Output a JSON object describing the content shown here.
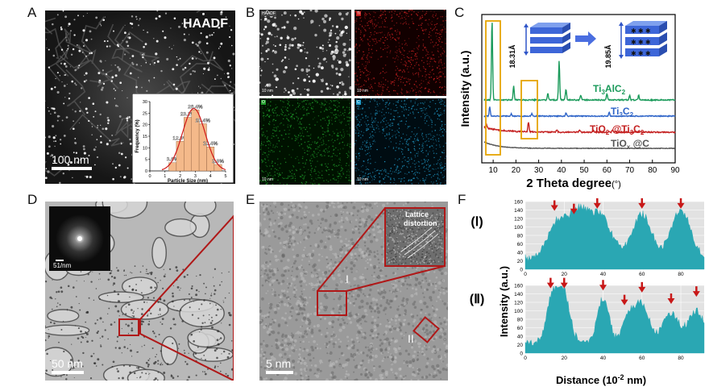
{
  "panels": {
    "A": {
      "letter": "A",
      "label": "HAADF",
      "scale": "100 nm",
      "inset": {
        "xlabel": "Particle Size (nm)",
        "ylabel": "Frequency (%)",
        "yticks": [
          "0",
          "5",
          "10",
          "15",
          "20",
          "25",
          "30"
        ],
        "xticks": [
          "0",
          "1",
          "2",
          "3",
          "4",
          "5"
        ],
        "bins": [
          {
            "center": 1.5,
            "value": 3.6,
            "label": "3.6%"
          },
          {
            "center": 2.0,
            "value": 12.8,
            "label": "12.8%"
          },
          {
            "center": 2.5,
            "value": 23.2,
            "label": "23.2%"
          },
          {
            "center": 3.0,
            "value": 26.4,
            "label": "26.4%"
          },
          {
            "center": 3.5,
            "value": 20.4,
            "label": "20.4%"
          },
          {
            "center": 4.0,
            "value": 10.4,
            "label": "10.4%"
          },
          {
            "center": 4.5,
            "value": 2.8,
            "label": "2.8%"
          }
        ]
      }
    },
    "B": {
      "letter": "B",
      "tiles": [
        {
          "label": "HAADF",
          "scale": "10 nm",
          "color": "#9a9a9a"
        },
        {
          "label": "Ti",
          "scale": "10 nm",
          "color": "#c62020"
        },
        {
          "label": "O",
          "scale": "10 nm",
          "color": "#1f9a2a"
        },
        {
          "label": "C",
          "scale": "10 nm",
          "color": "#1f9ac8"
        }
      ]
    },
    "C": {
      "letter": "C",
      "xlabel": "2 Theta degree",
      "xunit": "(°)",
      "ylabel": "Intensity (a.u.)",
      "xticks": [
        "10",
        "20",
        "30",
        "40",
        "50",
        "60",
        "70",
        "80",
        "90"
      ],
      "inset_left": "18.31Å",
      "inset_right": "19.85Å",
      "series_colors": {
        "Ti3AlC2": "#1a9a5a",
        "Ti3C2": "#2e64c8",
        "TiO2@Ti3C2": "#c42020",
        "TiOx@C": "#555555"
      },
      "series_labels": {
        "ti3alc2": {
          "a": "Ti",
          "b": "3",
          "c": "AlC",
          "d": "2"
        },
        "ti3c2": {
          "a": "Ti",
          "b": "3",
          "c": "C",
          "d": "2"
        },
        "tio2": {
          "a": "TiO",
          "b": "2",
          "c": " @Ti",
          "d": "3",
          "e": "C",
          "f": "2"
        },
        "tiox": {
          "a": "TiO",
          "b": "x",
          "c": " @C"
        }
      }
    },
    "D": {
      "letter": "D",
      "scale": "50 nm",
      "fft_scale": "51/nm"
    },
    "E": {
      "letter": "E",
      "scale": "5 nm",
      "roi1": "I",
      "roi2": "II",
      "inset_label_1": "Lattice",
      "inset_label_2": "distortion"
    },
    "F": {
      "letter": "F",
      "ylabel": "Intensity (a.u.)",
      "xlabel": "Distance (10",
      "xlabel_exp": "-2",
      "xlabel_tail": " nm)",
      "label_I": "(Ⅰ)",
      "label_II": "(Ⅱ)",
      "yticks": [
        "0",
        "20",
        "40",
        "60",
        "80",
        "100",
        "120",
        "140",
        "160"
      ],
      "xticks": [
        "0",
        "20",
        "40",
        "60",
        "80"
      ],
      "colors": {
        "fill": "#2aa7b3",
        "bg": "#e2e2e2",
        "arrow": "#c81818"
      }
    }
  }
}
